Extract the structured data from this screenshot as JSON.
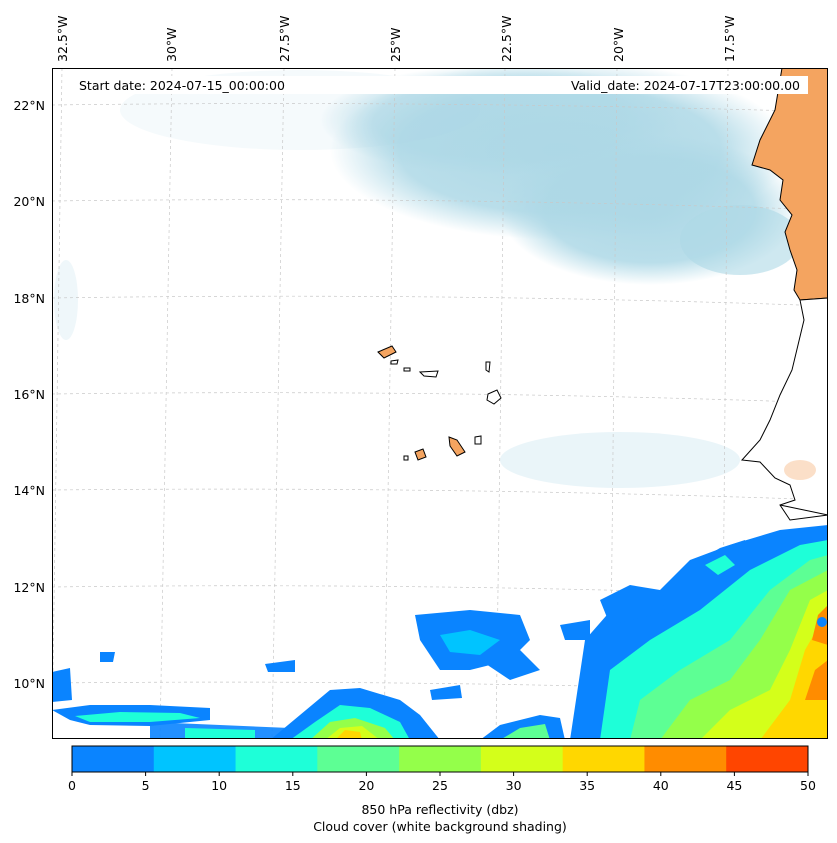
{
  "map": {
    "start_label": "Start date: 2024-07-15_00:00:00",
    "valid_label": "Valid_date: 2024-07-17T23:00:00.00",
    "lon_labels": [
      "32.5°W",
      "30°W",
      "27.5°W",
      "25°W",
      "22.5°W",
      "20°W",
      "17.5°W"
    ],
    "lat_labels": [
      "22°N",
      "20°N",
      "18°N",
      "16°N",
      "14°N",
      "12°N",
      "10°N"
    ],
    "land_color": "#f4a460",
    "cloud_color": "#add8e6"
  },
  "colorbar": {
    "ticks": [
      "0",
      "5",
      "10",
      "15",
      "20",
      "25",
      "30",
      "35",
      "40",
      "45",
      "50"
    ],
    "colors": [
      "#0a84ff",
      "#00c4ff",
      "#1effd8",
      "#5dff94",
      "#94ff4a",
      "#d4ff1a",
      "#ffd700",
      "#ff8c00",
      "#ff4500"
    ],
    "label_line1": "850 hPa reflectivity (dbz)",
    "label_line2": "Cloud cover (white background shading)"
  }
}
